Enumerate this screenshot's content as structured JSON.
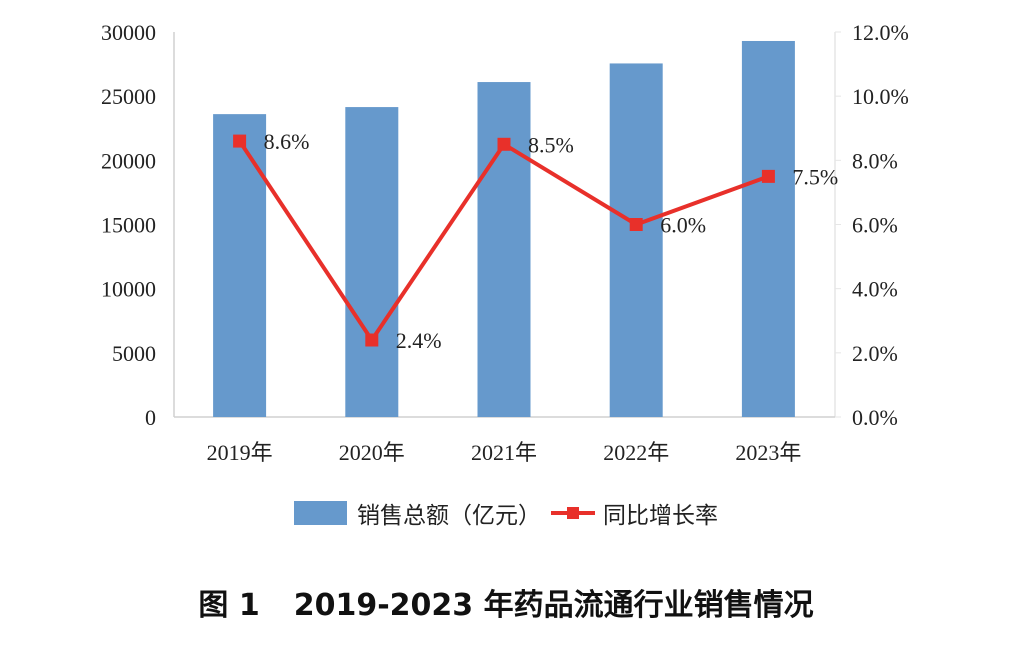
{
  "chart_data": {
    "type": "bar+line",
    "categories": [
      "2019年",
      "2020年",
      "2021年",
      "2022年",
      "2023年"
    ],
    "series": [
      {
        "name": "销售总额（亿元）",
        "type": "bar",
        "axis": "left",
        "color": "#6699CC",
        "values": [
          23600,
          24150,
          26100,
          27550,
          29300
        ]
      },
      {
        "name": "同比增长率",
        "type": "line",
        "axis": "right",
        "color": "#E8302A",
        "values": [
          8.6,
          2.4,
          8.5,
          6.0,
          7.5
        ],
        "labels": [
          "8.6%",
          "2.4%",
          "8.5%",
          "6.0%",
          "7.5%"
        ]
      }
    ],
    "y_left": {
      "ylim": [
        0,
        30000
      ],
      "ticks": [
        "0",
        "5000",
        "10000",
        "15000",
        "20000",
        "25000",
        "30000"
      ]
    },
    "y_right": {
      "ylim": [
        0,
        12
      ],
      "ticks": [
        "0.0%",
        "2.0%",
        "4.0%",
        "6.0%",
        "8.0%",
        "10.0%",
        "12.0%"
      ]
    },
    "legend_position": "bottom",
    "grid": false,
    "title": "图 1 2019-2023 年药品流通行业销售情况"
  },
  "caption": {
    "number": "图 1",
    "text": "2019-2023 年药品流通行业销售情况"
  },
  "legend": {
    "bar_label": "销售总额（亿元）",
    "line_label": "同比增长率"
  }
}
